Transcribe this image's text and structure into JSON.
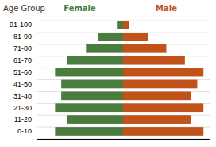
{
  "chart_data": {
    "type": "pyramid",
    "orientation": "horizontal",
    "y_label": "Age Group",
    "categories": [
      "0-10",
      "11-20",
      "21-30",
      "31-40",
      "41-50",
      "51-60",
      "61-70",
      "71-80",
      "81-90",
      "91-100"
    ],
    "series": [
      {
        "name": "Female",
        "color": "#4a7c3f",
        "values": [
          11,
          9,
          11,
          10,
          10,
          11,
          9,
          6,
          4,
          1
        ]
      },
      {
        "name": "Male",
        "color": "#c0521a",
        "values": [
          13,
          11,
          13,
          11,
          12,
          13,
          10,
          7,
          4,
          1
        ]
      }
    ],
    "xlim": [
      -14,
      14
    ],
    "xticks": [],
    "tick_labels": "y",
    "grid": true
  }
}
